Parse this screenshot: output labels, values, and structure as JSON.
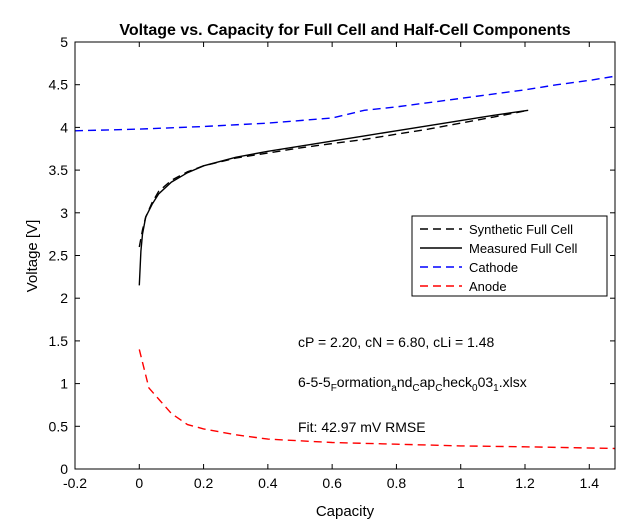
{
  "chart_data": {
    "type": "line",
    "title": "Voltage vs. Capacity for Full Cell and Half-Cell Components",
    "xlabel": "Capacity",
    "ylabel": "Voltage [V]",
    "xlim": [
      -0.2,
      1.48
    ],
    "ylim": [
      0,
      5
    ],
    "xticks": [
      "-0.2",
      "0",
      "0.2",
      "0.4",
      "0.6",
      "0.8",
      "1",
      "1.2",
      "1.4"
    ],
    "yticks": [
      "0",
      "0.5",
      "1",
      "1.5",
      "2",
      "2.5",
      "3",
      "3.5",
      "4",
      "4.5",
      "5"
    ],
    "grid": false,
    "legend_position": "right-middle",
    "series": [
      {
        "name": "Synthetic Full Cell",
        "color": "#000000",
        "style": "dashed",
        "x": [
          0.0,
          0.01,
          0.02,
          0.04,
          0.06,
          0.1,
          0.15,
          0.2,
          0.3,
          0.4,
          0.5,
          0.6,
          0.7,
          0.8,
          0.9,
          1.0,
          1.1,
          1.21
        ],
        "y": [
          2.6,
          2.8,
          2.95,
          3.12,
          3.25,
          3.38,
          3.48,
          3.55,
          3.64,
          3.7,
          3.76,
          3.81,
          3.86,
          3.92,
          3.98,
          4.05,
          4.12,
          4.2
        ]
      },
      {
        "name": "Measured Full Cell",
        "color": "#000000",
        "style": "solid",
        "x": [
          0.0,
          0.005,
          0.01,
          0.02,
          0.04,
          0.06,
          0.1,
          0.15,
          0.2,
          0.3,
          0.4,
          0.5,
          0.6,
          0.7,
          0.8,
          0.9,
          1.0,
          1.1,
          1.21
        ],
        "y": [
          2.15,
          2.55,
          2.75,
          2.95,
          3.1,
          3.22,
          3.36,
          3.47,
          3.55,
          3.65,
          3.72,
          3.78,
          3.84,
          3.9,
          3.96,
          4.02,
          4.08,
          4.14,
          4.2
        ]
      },
      {
        "name": "Cathode",
        "color": "#0000ff",
        "style": "dashed",
        "x": [
          -0.2,
          0.0,
          0.2,
          0.4,
          0.6,
          0.7,
          0.8,
          1.0,
          1.2,
          1.3,
          1.4,
          1.48
        ],
        "y": [
          3.96,
          3.98,
          4.01,
          4.05,
          4.11,
          4.2,
          4.24,
          4.34,
          4.44,
          4.5,
          4.55,
          4.6
        ]
      },
      {
        "name": "Anode",
        "color": "#ff0000",
        "style": "dashed",
        "x": [
          0.0,
          0.01,
          0.03,
          0.06,
          0.1,
          0.15,
          0.2,
          0.3,
          0.4,
          0.6,
          0.8,
          1.0,
          1.2,
          1.48
        ],
        "y": [
          1.4,
          1.25,
          0.95,
          0.82,
          0.65,
          0.52,
          0.47,
          0.4,
          0.35,
          0.31,
          0.29,
          0.27,
          0.26,
          0.24
        ]
      }
    ],
    "annotations": [
      {
        "text": "cP = 2.20, cN = 6.80, cLi = 1.48",
        "x": 0.49,
        "y": 1.48
      },
      {
        "text": "6-5-5_Formation_and_cap_check_003_1.xlsx",
        "x": 0.49,
        "y": 1.03
      },
      {
        "text": "Fit: 42.97 mV RMSE",
        "x": 0.49,
        "y": 0.5
      }
    ]
  },
  "annotation_display": {
    "line1": "cP = 2.20, cN = 6.80, cLi = 1.48",
    "file_a": "6-5-5",
    "file_b": "F",
    "file_c": "ormation",
    "file_d": "a",
    "file_e": "nd",
    "file_f": "C",
    "file_g": "ap",
    "file_h": "C",
    "file_i": "heck",
    "file_j": "0",
    "file_k": "03",
    "file_l": "1",
    "file_m": ".xlsx",
    "line3": "Fit: 42.97 mV RMSE"
  }
}
